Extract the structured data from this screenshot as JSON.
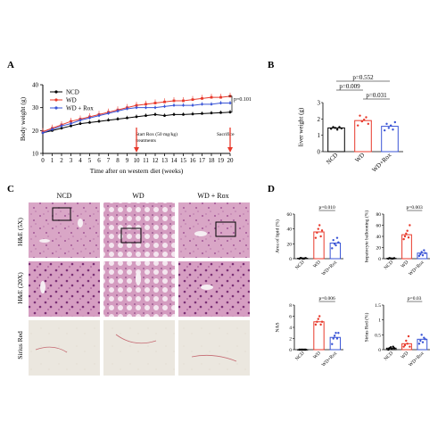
{
  "panels": {
    "A": "A",
    "B": "B",
    "C": "C",
    "D": "D"
  },
  "colors": {
    "ncd": "#000000",
    "wd": "#e8392b",
    "wdrox": "#3a55d6",
    "he_bg": "#d9a6c6",
    "he_dark": "#8f3d86",
    "sr_bg": "#e8e4dc"
  },
  "panelA": {
    "annotation_rox": "Start Rox (50 mg/kg)",
    "annotation_rox2": "treatments",
    "annotation_sac": "Sacrifice",
    "pvalue": "p=0.101"
  },
  "panelC": {
    "col_labels": [
      "NCD",
      "WD",
      "WD + Rox"
    ],
    "row_labels": [
      "H&E (5X)",
      "H&E (20X)",
      "Sirius Red"
    ]
  },
  "chart_data": [
    {
      "id": "A",
      "type": "line",
      "xlabel": "Time after on western diet (weeks)",
      "ylabel": "Body weight (g)",
      "x": [
        0,
        1,
        2,
        3,
        4,
        5,
        6,
        7,
        8,
        9,
        10,
        11,
        12,
        13,
        14,
        15,
        16,
        17,
        18,
        19,
        20
      ],
      "xlim": [
        0,
        20
      ],
      "ylim": [
        10,
        40
      ],
      "yticks": [
        10,
        20,
        30,
        40
      ],
      "legend_position": "top-left",
      "series": [
        {
          "name": "NCD",
          "color": "#000000",
          "marker": "circle",
          "values": [
            19,
            20,
            21,
            22,
            23,
            23.5,
            24,
            24.5,
            25,
            25.5,
            26,
            26.5,
            27,
            26.5,
            27,
            27,
            27.2,
            27.4,
            27.6,
            27.8,
            28
          ]
        },
        {
          "name": "WD",
          "color": "#e8392b",
          "marker": "square",
          "values": [
            19.5,
            21,
            22.5,
            24,
            25,
            26,
            27,
            28,
            29,
            30,
            31,
            31.5,
            32,
            32.5,
            33,
            33,
            33.5,
            34,
            34.5,
            34.5,
            35
          ]
        },
        {
          "name": "WD + Rox",
          "color": "#3a55d6",
          "marker": "diamond",
          "values": [
            19,
            20.5,
            22,
            23,
            24.5,
            25.5,
            26.5,
            27.5,
            28.5,
            29.5,
            30,
            30,
            30,
            30.5,
            31,
            31,
            31,
            31.5,
            31.5,
            32,
            32
          ]
        }
      ],
      "annotations": [
        {
          "text": "p=0.101"
        },
        {
          "text": "Start Rox (50 mg/kg) treatments",
          "x": 10
        },
        {
          "text": "Sacrifice",
          "x": 20
        }
      ]
    },
    {
      "id": "B",
      "type": "bar",
      "ylabel": "liver weight (g)",
      "categories": [
        "NCD",
        "WD",
        "WD+Rox"
      ],
      "values": [
        1.45,
        1.9,
        1.55
      ],
      "ylim": [
        0,
        3
      ],
      "yticks": [
        0,
        1,
        2,
        3
      ],
      "points": [
        [
          1.4,
          1.5,
          1.45,
          1.35,
          1.5,
          1.42
        ],
        [
          1.6,
          2.2,
          1.85,
          1.95,
          2.1,
          1.7
        ],
        [
          1.3,
          1.7,
          1.45,
          1.6,
          1.35,
          1.8
        ]
      ],
      "comparisons": [
        {
          "text": "p=0.552",
          "from": 0,
          "to": 2
        },
        {
          "text": "p=0.009",
          "from": 0,
          "to": 1
        },
        {
          "text": "p=0.031",
          "from": 1,
          "to": 2
        }
      ]
    },
    {
      "id": "D1",
      "type": "bar",
      "ylabel": "Area of lipid (%)",
      "categories": [
        "NCD",
        "WD",
        "WD+Rox"
      ],
      "values": [
        0.5,
        36,
        21
      ],
      "ylim": [
        0,
        60
      ],
      "yticks": [
        0,
        20,
        40,
        60
      ],
      "points": [
        [
          0,
          1,
          0.5,
          0,
          0.3,
          0.8
        ],
        [
          28,
          35,
          40,
          45,
          30,
          38
        ],
        [
          14,
          25,
          20,
          18,
          28,
          22
        ]
      ],
      "comparisons": [
        {
          "text": "p=0.010",
          "from": 1,
          "to": 2
        }
      ]
    },
    {
      "id": "D2",
      "type": "bar",
      "ylabel": "hepatocyte ballooning (%)",
      "categories": [
        "NCD",
        "WD",
        "WD+Rox"
      ],
      "values": [
        0.5,
        43,
        10
      ],
      "ylim": [
        0,
        80
      ],
      "yticks": [
        0,
        20,
        40,
        60,
        80
      ],
      "points": [
        [
          0,
          1,
          0.5,
          0,
          0.3,
          0.8
        ],
        [
          35,
          40,
          45,
          50,
          38,
          60
        ],
        [
          5,
          8,
          12,
          6,
          15,
          10
        ]
      ],
      "comparisons": [
        {
          "text": "p=0.003",
          "from": 1,
          "to": 2
        }
      ]
    },
    {
      "id": "D3",
      "type": "bar",
      "ylabel": "NAS",
      "categories": [
        "NCD",
        "WD",
        "WD+Rox"
      ],
      "values": [
        0,
        5,
        2.2
      ],
      "ylim": [
        0,
        8
      ],
      "yticks": [
        0,
        2,
        4,
        6,
        8
      ],
      "points": [
        [
          0,
          0,
          0,
          0,
          0,
          0
        ],
        [
          4.5,
          5,
          5.5,
          6,
          4.5,
          5
        ],
        [
          1,
          2,
          2.5,
          3,
          2,
          3
        ]
      ],
      "comparisons": [
        {
          "text": "p=0.006",
          "from": 1,
          "to": 2
        }
      ]
    },
    {
      "id": "D4",
      "type": "bar",
      "ylabel": "Sirius Red (%)",
      "categories": [
        "NCD",
        "WD",
        "WD+Rox"
      ],
      "values": [
        0.05,
        0.2,
        0.35
      ],
      "ylim": [
        0,
        1.5
      ],
      "yticks": [
        0,
        0.5,
        1.0,
        1.5
      ],
      "points": [
        [
          0,
          0.05,
          0.08,
          0.02,
          0.1,
          0.05
        ],
        [
          0.1,
          0.15,
          0.3,
          0.2,
          0.45,
          0.1
        ],
        [
          0.2,
          0.3,
          0.5,
          0.25,
          0.4,
          0.35
        ]
      ],
      "comparisons": [
        {
          "text": "p=0.03",
          "from": 1,
          "to": 2
        }
      ]
    }
  ]
}
